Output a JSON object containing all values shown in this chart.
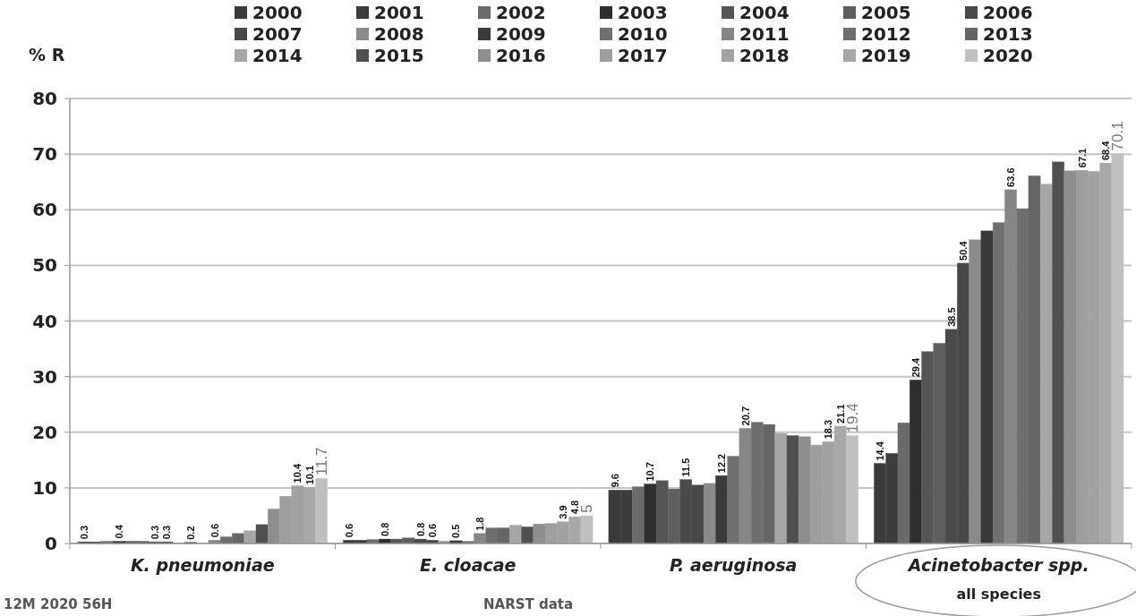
{
  "chart_data": {
    "type": "bar",
    "ylabel": "% R",
    "categories": [
      "K. pneumoniae",
      "E. cloacae",
      "P. aeruginosa",
      "Acinetobacter spp."
    ],
    "ylim": [
      0,
      80
    ],
    "yticks": [
      0,
      10,
      20,
      30,
      40,
      50,
      60,
      70,
      80
    ],
    "grid": "y",
    "legend": "top",
    "annotations": [
      "all species",
      "12M 2020 56H",
      "NARST data"
    ],
    "series": [
      {
        "name": "2000",
        "color": "#3a3a3a",
        "values": [
          0.3,
          0.6,
          9.6,
          14.4
        ],
        "value_labels": [
          "0.3",
          "0.6",
          "9.6",
          "14.4"
        ]
      },
      {
        "name": "2001",
        "color": "#3c3c3c",
        "values": [
          0.3,
          0.6,
          9.6,
          16.2
        ],
        "value_labels": [
          null,
          null,
          null,
          null
        ]
      },
      {
        "name": "2002",
        "color": "#6a6a6a",
        "values": [
          0.4,
          0.7,
          10.2,
          21.7
        ],
        "value_labels": [
          null,
          null,
          null,
          null
        ]
      },
      {
        "name": "2003",
        "color": "#2e2e2e",
        "values": [
          0.4,
          0.8,
          10.7,
          29.4
        ],
        "value_labels": [
          "0.4",
          "0.8",
          "10.7",
          "29.4"
        ]
      },
      {
        "name": "2004",
        "color": "#555555",
        "values": [
          0.4,
          0.8,
          11.3,
          34.5
        ],
        "value_labels": [
          null,
          null,
          null,
          null
        ]
      },
      {
        "name": "2005",
        "color": "#5e5e5e",
        "values": [
          0.4,
          1.0,
          9.8,
          36.0
        ],
        "value_labels": [
          null,
          null,
          null,
          null
        ]
      },
      {
        "name": "2006",
        "color": "#4a4a4a",
        "values": [
          0.3,
          0.8,
          11.5,
          38.5
        ],
        "value_labels": [
          "0.3",
          "0.8",
          "11.5",
          "38.5"
        ]
      },
      {
        "name": "2007",
        "color": "#484848",
        "values": [
          0.3,
          0.6,
          10.5,
          50.4
        ],
        "value_labels": [
          "0.3",
          "0.6",
          null,
          "50.4"
        ]
      },
      {
        "name": "2008",
        "color": "#8a8a8a",
        "values": [
          null,
          0.4,
          10.8,
          54.6
        ],
        "value_labels": [
          null,
          null,
          null,
          null
        ]
      },
      {
        "name": "2009",
        "color": "#3a3a3a",
        "values": [
          0.2,
          0.5,
          12.2,
          56.2
        ],
        "value_labels": [
          "0.2",
          "0.5",
          "12.2",
          null
        ]
      },
      {
        "name": "2010",
        "color": "#707070",
        "values": [
          null,
          0.4,
          15.7,
          57.7
        ],
        "value_labels": [
          null,
          null,
          null,
          null
        ]
      },
      {
        "name": "2011",
        "color": "#868686",
        "values": [
          0.6,
          1.8,
          20.7,
          63.6
        ],
        "value_labels": [
          "0.6",
          "1.8",
          "20.7",
          "63.6"
        ]
      },
      {
        "name": "2012",
        "color": "#6e6e6e",
        "values": [
          1.2,
          2.8,
          21.8,
          60.2
        ],
        "value_labels": [
          null,
          null,
          null,
          null
        ]
      },
      {
        "name": "2013",
        "color": "#666666",
        "values": [
          1.8,
          2.8,
          21.4,
          66.1
        ],
        "value_labels": [
          null,
          null,
          null,
          null
        ]
      },
      {
        "name": "2014",
        "color": "#a6a6a6",
        "values": [
          2.3,
          3.3,
          19.8,
          64.6
        ],
        "value_labels": [
          null,
          null,
          null,
          null
        ]
      },
      {
        "name": "2015",
        "color": "#505050",
        "values": [
          3.4,
          3.0,
          19.4,
          68.6
        ],
        "value_labels": [
          null,
          null,
          null,
          null
        ]
      },
      {
        "name": "2016",
        "color": "#8e8e8e",
        "values": [
          6.2,
          3.5,
          19.2,
          67.0
        ],
        "value_labels": [
          null,
          null,
          null,
          null
        ]
      },
      {
        "name": "2017",
        "color": "#9e9e9e",
        "values": [
          8.5,
          3.6,
          17.7,
          67.1
        ],
        "value_labels": [
          null,
          null,
          null,
          "67.1"
        ]
      },
      {
        "name": "2018",
        "color": "#a2a2a2",
        "values": [
          10.4,
          3.9,
          18.3,
          66.9
        ],
        "value_labels": [
          "10.4",
          "3.9",
          "18.3",
          null
        ]
      },
      {
        "name": "2019",
        "color": "#a8a8a8",
        "values": [
          10.1,
          4.8,
          21.1,
          68.4
        ],
        "value_labels": [
          "10.1",
          "4.8",
          "21.1",
          "68.4"
        ]
      },
      {
        "name": "2020",
        "color": "#c0c0c0",
        "values": [
          11.7,
          5,
          19.4,
          70.1
        ],
        "value_labels": [
          "11.7",
          "5",
          "19.4",
          "70.1"
        ]
      }
    ]
  }
}
